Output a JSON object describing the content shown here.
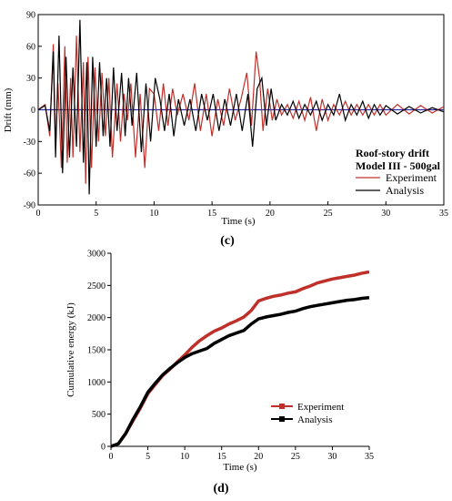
{
  "colors": {
    "experiment": "#c0302a",
    "analysis": "#000000",
    "zero_line": "#2a2aa8",
    "axis": "#000000"
  },
  "chart_data": [
    {
      "type": "line",
      "panel_label": "(c)",
      "title_lines": [
        "Roof-story drift",
        "Model III - 500gal"
      ],
      "xlabel": "Time (s)",
      "ylabel": "Drift (mm)",
      "xlim": [
        0,
        35
      ],
      "ylim": [
        -90,
        90
      ],
      "xticks": [
        0,
        5,
        10,
        15,
        20,
        25,
        30,
        35
      ],
      "yticks": [
        -90,
        -60,
        -30,
        0,
        30,
        60,
        90
      ],
      "zero_line": true,
      "legend_position": "right, below title",
      "series": [
        {
          "name": "Experiment",
          "x": [
            0,
            0.6,
            1.0,
            1.3,
            1.5,
            1.7,
            2.0,
            2.3,
            2.5,
            2.8,
            3.0,
            3.3,
            3.6,
            3.9,
            4.1,
            4.3,
            4.6,
            4.9,
            5.2,
            5.5,
            5.8,
            6.1,
            6.4,
            6.8,
            7.1,
            7.4,
            7.7,
            8.0,
            8.4,
            8.8,
            9.2,
            9.6,
            10.0,
            10.4,
            10.8,
            11.2,
            11.6,
            12.0,
            12.5,
            13.0,
            13.5,
            14.0,
            14.5,
            15.0,
            15.5,
            16.0,
            16.5,
            17.0,
            17.5,
            18.0,
            18.4,
            18.8,
            19.1,
            19.4,
            19.8,
            20.2,
            20.6,
            21.0,
            21.5,
            22.0,
            22.5,
            23.0,
            23.5,
            24.0,
            24.5,
            25.0,
            25.5,
            26.0,
            26.5,
            27.0,
            27.5,
            28.0,
            28.5,
            29.0,
            29.5,
            30.0,
            31.0,
            32.0,
            33.0,
            34.0,
            35.0
          ],
          "y": [
            0,
            5,
            -25,
            62,
            -35,
            25,
            -55,
            60,
            -50,
            30,
            -45,
            70,
            -40,
            45,
            -70,
            50,
            -55,
            40,
            -30,
            35,
            -25,
            30,
            -45,
            25,
            -30,
            15,
            -10,
            25,
            -45,
            15,
            -55,
            20,
            15,
            -20,
            25,
            -15,
            20,
            -5,
            15,
            -10,
            25,
            -20,
            15,
            -25,
            10,
            -15,
            20,
            -10,
            10,
            35,
            -15,
            55,
            30,
            -20,
            20,
            -10,
            10,
            -5,
            5,
            -8,
            8,
            -10,
            12,
            -20,
            10,
            -10,
            5,
            -5,
            8,
            -5,
            5,
            -5,
            5,
            -5,
            5,
            -5,
            5,
            -4,
            4,
            -3,
            3
          ]
        },
        {
          "name": "Analysis",
          "x": [
            0,
            0.6,
            1.0,
            1.3,
            1.5,
            1.8,
            2.1,
            2.4,
            2.7,
            3.0,
            3.3,
            3.6,
            3.9,
            4.2,
            4.4,
            4.7,
            5.0,
            5.3,
            5.6,
            5.9,
            6.2,
            6.5,
            6.8,
            7.2,
            7.5,
            7.8,
            8.1,
            8.5,
            8.9,
            9.3,
            9.7,
            10.1,
            10.5,
            10.9,
            11.3,
            11.7,
            12.1,
            12.6,
            13.1,
            13.6,
            14.1,
            14.6,
            15.1,
            15.6,
            16.1,
            16.6,
            17.1,
            17.6,
            18.1,
            18.5,
            18.9,
            19.3,
            19.7,
            20.1,
            20.5,
            21.0,
            21.5,
            22.0,
            22.5,
            23.0,
            23.5,
            24.0,
            24.5,
            25.0,
            25.5,
            26.0,
            26.5,
            27.0,
            27.5,
            28.0,
            28.5,
            29.0,
            29.5,
            30.0,
            31.0,
            32.0,
            33.0,
            34.0,
            35.0
          ],
          "y": [
            0,
            4,
            -20,
            55,
            -45,
            70,
            -60,
            50,
            -45,
            40,
            -35,
            85,
            -50,
            45,
            -80,
            50,
            -35,
            45,
            -25,
            30,
            -35,
            40,
            -20,
            35,
            -25,
            30,
            -15,
            35,
            -40,
            25,
            -30,
            30,
            10,
            -20,
            15,
            -25,
            10,
            -15,
            10,
            -20,
            15,
            -10,
            15,
            -20,
            10,
            -15,
            15,
            -20,
            15,
            -35,
            20,
            30,
            -15,
            20,
            -10,
            5,
            -5,
            8,
            -8,
            5,
            -5,
            8,
            -10,
            5,
            -5,
            15,
            -10,
            5,
            -5,
            8,
            -8,
            5,
            -5,
            4,
            -4,
            3,
            -3,
            2,
            -2
          ]
        }
      ]
    },
    {
      "type": "line",
      "panel_label": "(d)",
      "xlabel": "Time (s)",
      "ylabel": "Cumulative energy (kJ)",
      "xlim": [
        0,
        35
      ],
      "ylim": [
        0,
        3000
      ],
      "xticks": [
        0,
        5,
        10,
        15,
        20,
        25,
        30,
        35
      ],
      "yticks": [
        0,
        500,
        1000,
        1500,
        2000,
        2500,
        3000
      ],
      "legend_position": "bottom-left",
      "series": [
        {
          "name": "Experiment",
          "x": [
            0,
            1,
            2,
            3,
            4,
            5,
            6,
            7,
            8,
            9,
            10,
            11,
            12,
            13,
            14,
            15,
            16,
            17,
            18,
            19,
            20,
            21,
            22,
            23,
            24,
            25,
            26,
            27,
            28,
            29,
            30,
            31,
            32,
            33,
            34,
            35
          ],
          "y": [
            0,
            40,
            200,
            400,
            600,
            820,
            960,
            1100,
            1200,
            1310,
            1420,
            1540,
            1640,
            1720,
            1790,
            1840,
            1900,
            1950,
            2010,
            2110,
            2260,
            2300,
            2330,
            2350,
            2380,
            2400,
            2450,
            2490,
            2540,
            2570,
            2600,
            2620,
            2640,
            2660,
            2690,
            2710
          ]
        },
        {
          "name": "Analysis",
          "x": [
            0,
            1,
            2,
            3,
            4,
            5,
            6,
            7,
            8,
            9,
            10,
            11,
            12,
            13,
            14,
            15,
            16,
            17,
            18,
            19,
            20,
            21,
            22,
            23,
            24,
            25,
            26,
            27,
            28,
            29,
            30,
            31,
            32,
            33,
            34,
            35
          ],
          "y": [
            0,
            40,
            200,
            420,
            620,
            840,
            980,
            1110,
            1210,
            1300,
            1380,
            1440,
            1480,
            1520,
            1600,
            1660,
            1720,
            1760,
            1800,
            1900,
            1980,
            2010,
            2030,
            2050,
            2080,
            2100,
            2140,
            2170,
            2190,
            2210,
            2230,
            2250,
            2270,
            2280,
            2300,
            2310
          ]
        }
      ]
    }
  ]
}
